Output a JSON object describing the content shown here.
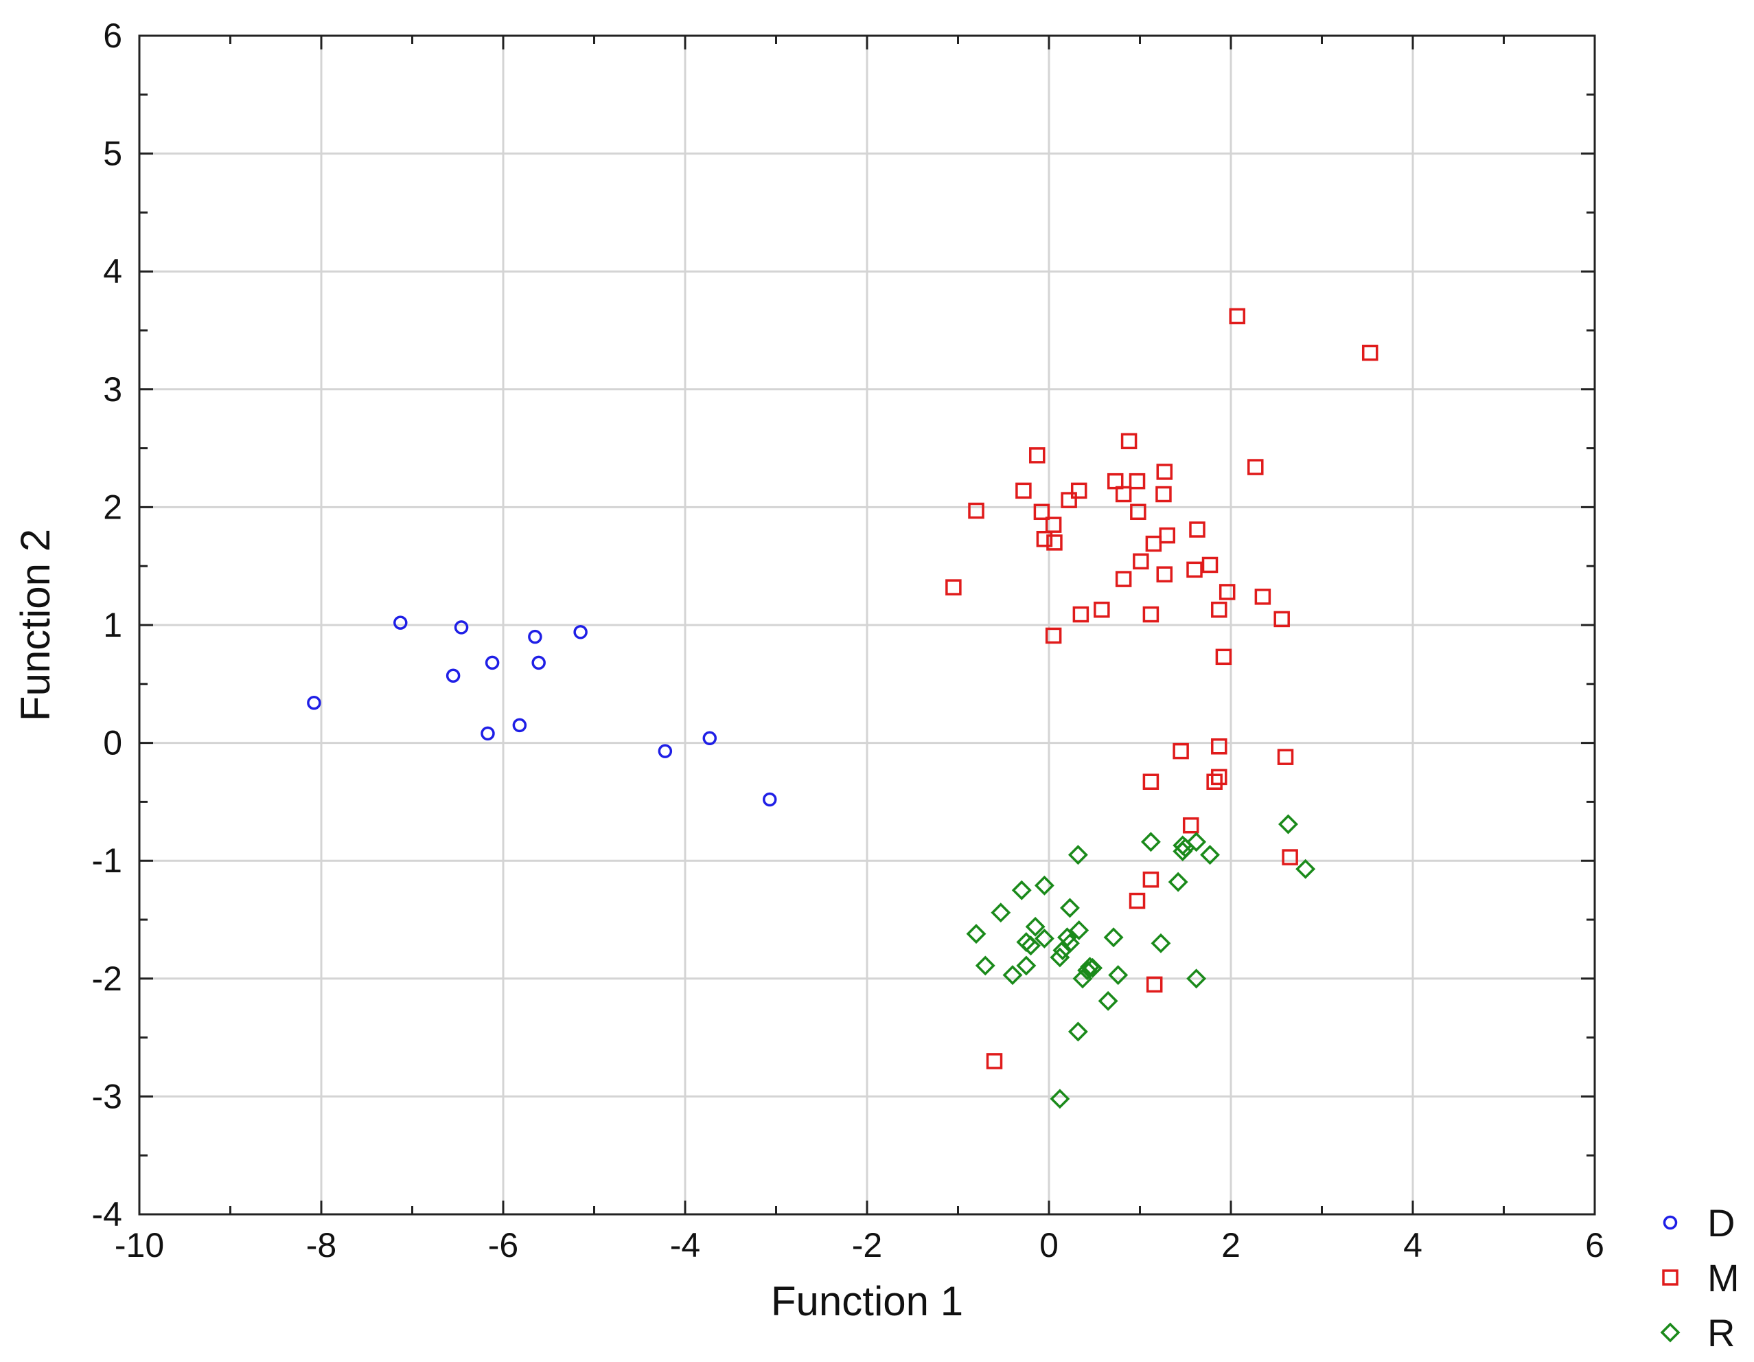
{
  "chart_data": {
    "type": "scatter",
    "title": "",
    "xlabel": "Function 1",
    "ylabel": "Function 2",
    "xlim": [
      -10,
      6
    ],
    "ylim": [
      -4,
      6
    ],
    "xticks": [
      -10,
      -8,
      -6,
      -4,
      -2,
      0,
      2,
      4,
      6
    ],
    "yticks": [
      -4,
      -3,
      -2,
      -1,
      0,
      1,
      2,
      3,
      4,
      5,
      6
    ],
    "xtick_labels": [
      "-10",
      "-8",
      "-6",
      "-4",
      "-2",
      "0",
      "2",
      "4",
      "6"
    ],
    "ytick_labels": [
      "-4",
      "-3",
      "-2",
      "-1",
      "0",
      "1",
      "2",
      "3",
      "4",
      "5",
      "6"
    ],
    "grid": true,
    "legend_position": "right-bottom, outside plot",
    "series": [
      {
        "name": "D",
        "marker": "circle",
        "color": "#1f1fe6",
        "points": [
          [
            -8.08,
            0.34
          ],
          [
            -7.13,
            1.02
          ],
          [
            -6.46,
            0.98
          ],
          [
            -6.55,
            0.57
          ],
          [
            -6.12,
            0.68
          ],
          [
            -6.17,
            0.08
          ],
          [
            -5.65,
            0.9
          ],
          [
            -5.61,
            0.68
          ],
          [
            -5.82,
            0.15
          ],
          [
            -5.15,
            0.94
          ],
          [
            -4.22,
            -0.07
          ],
          [
            -3.73,
            0.04
          ],
          [
            -3.07,
            -0.48
          ]
        ]
      },
      {
        "name": "M",
        "marker": "square",
        "color": "#e01b1b",
        "points": [
          [
            2.07,
            3.62
          ],
          [
            3.53,
            3.31
          ],
          [
            0.88,
            2.56
          ],
          [
            -0.13,
            2.44
          ],
          [
            2.27,
            2.34
          ],
          [
            1.27,
            2.3
          ],
          [
            0.73,
            2.22
          ],
          [
            0.97,
            2.22
          ],
          [
            -0.28,
            2.14
          ],
          [
            0.33,
            2.14
          ],
          [
            0.82,
            2.11
          ],
          [
            1.26,
            2.11
          ],
          [
            0.22,
            2.06
          ],
          [
            -0.8,
            1.97
          ],
          [
            -0.08,
            1.96
          ],
          [
            0.98,
            1.96
          ],
          [
            0.05,
            1.85
          ],
          [
            1.63,
            1.81
          ],
          [
            1.3,
            1.76
          ],
          [
            -0.05,
            1.73
          ],
          [
            0.06,
            1.7
          ],
          [
            1.15,
            1.69
          ],
          [
            1.01,
            1.54
          ],
          [
            1.77,
            1.51
          ],
          [
            1.6,
            1.47
          ],
          [
            1.27,
            1.43
          ],
          [
            0.82,
            1.39
          ],
          [
            -1.05,
            1.32
          ],
          [
            1.96,
            1.28
          ],
          [
            2.35,
            1.24
          ],
          [
            0.58,
            1.13
          ],
          [
            1.87,
            1.13
          ],
          [
            0.35,
            1.09
          ],
          [
            1.12,
            1.09
          ],
          [
            2.56,
            1.05
          ],
          [
            0.05,
            0.91
          ],
          [
            1.92,
            0.73
          ],
          [
            1.87,
            -0.03
          ],
          [
            1.45,
            -0.07
          ],
          [
            2.6,
            -0.12
          ],
          [
            1.12,
            -0.33
          ],
          [
            1.87,
            -0.29
          ],
          [
            1.82,
            -0.33
          ],
          [
            1.56,
            -0.7
          ],
          [
            2.65,
            -0.97
          ],
          [
            1.12,
            -1.16
          ],
          [
            0.97,
            -1.34
          ],
          [
            1.16,
            -2.05
          ],
          [
            -0.6,
            -2.7
          ]
        ]
      },
      {
        "name": "R",
        "marker": "diamond",
        "color": "#1a8a1a",
        "points": [
          [
            2.63,
            -0.69
          ],
          [
            2.82,
            -1.07
          ],
          [
            1.12,
            -0.84
          ],
          [
            1.62,
            -0.84
          ],
          [
            1.47,
            -0.87
          ],
          [
            1.5,
            -0.89
          ],
          [
            1.47,
            -0.92
          ],
          [
            1.77,
            -0.95
          ],
          [
            0.32,
            -0.95
          ],
          [
            1.42,
            -1.18
          ],
          [
            -0.05,
            -1.21
          ],
          [
            -0.3,
            -1.25
          ],
          [
            0.23,
            -1.4
          ],
          [
            -0.53,
            -1.44
          ],
          [
            -0.15,
            -1.56
          ],
          [
            0.33,
            -1.59
          ],
          [
            -0.8,
            -1.62
          ],
          [
            0.2,
            -1.65
          ],
          [
            0.71,
            -1.65
          ],
          [
            -0.05,
            -1.66
          ],
          [
            -0.25,
            -1.69
          ],
          [
            0.23,
            -1.7
          ],
          [
            1.23,
            -1.7
          ],
          [
            -0.2,
            -1.72
          ],
          [
            0.15,
            -1.76
          ],
          [
            0.12,
            -1.82
          ],
          [
            -0.7,
            -1.89
          ],
          [
            -0.25,
            -1.89
          ],
          [
            0.45,
            -1.9
          ],
          [
            0.48,
            -1.91
          ],
          [
            0.42,
            -1.93
          ],
          [
            -0.4,
            -1.97
          ],
          [
            0.76,
            -1.97
          ],
          [
            0.37,
            -2.0
          ],
          [
            1.62,
            -2.0
          ],
          [
            0.65,
            -2.19
          ],
          [
            0.32,
            -2.45
          ],
          [
            0.12,
            -3.02
          ]
        ]
      }
    ]
  }
}
